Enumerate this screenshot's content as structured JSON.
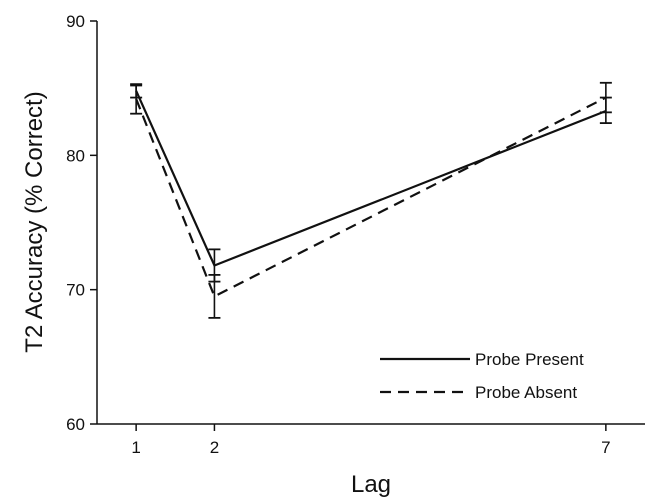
{
  "chart_data": {
    "type": "line",
    "title": "",
    "xlabel": "Lag",
    "ylabel": "T2 Accuracy (% Correct)",
    "x": [
      1,
      2,
      7
    ],
    "x_tick_labels": [
      "1",
      "2",
      "7"
    ],
    "xlim": [
      0.5,
      7.5
    ],
    "ylim": [
      60,
      90
    ],
    "y_ticks": [
      60,
      70,
      80,
      90
    ],
    "y_tick_labels": [
      "60",
      "70",
      "80",
      "90"
    ],
    "grid": false,
    "legend_position": "bottom-right",
    "series": [
      {
        "name": "Probe Present",
        "line_style": "solid",
        "values": [
          84.8,
          71.8,
          83.3
        ],
        "error_low": [
          84.3,
          70.6,
          82.4
        ],
        "error_high": [
          85.3,
          73.0,
          84.3
        ]
      },
      {
        "name": "Probe Absent",
        "line_style": "dashed",
        "values": [
          84.2,
          69.5,
          84.3
        ],
        "error_low": [
          83.1,
          67.9,
          83.2
        ],
        "error_high": [
          85.2,
          71.1,
          85.4
        ]
      }
    ]
  }
}
